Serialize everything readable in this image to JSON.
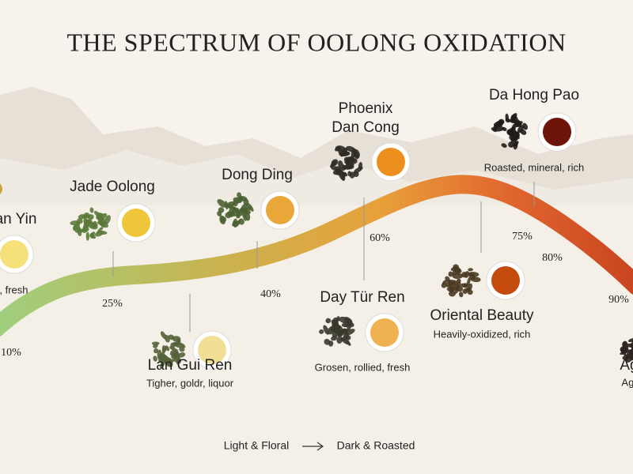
{
  "title": "THE SPECTRUM OF OOLONG OXIDATION",
  "teas": [
    {
      "name": "an Yin",
      "note": "l, fresh"
    },
    {
      "name": "Jade Oolong"
    },
    {
      "name": "Lan Gui Ren",
      "note": "Tigher, goldr, liquor"
    },
    {
      "name": "Dong Ding"
    },
    {
      "name": [
        "Phoenix",
        "Dan Cong"
      ]
    },
    {
      "name": "Day  Tür Ren",
      "note": "Grosen, rollied, fresh"
    },
    {
      "name": "Da Hong Pao",
      "note": "Roasted, mineral, rich"
    },
    {
      "name": "Oriental Beauty",
      "note": "Heavily-oxidized, rich"
    },
    {
      "name": "Ag",
      "note": "Age"
    }
  ],
  "percent_labels": [
    "10%",
    "25%",
    "40%",
    "60%",
    "75%",
    "80%",
    "90%"
  ],
  "footer": {
    "from": "Light & Floral",
    "to": "Dark & Roasted"
  }
}
